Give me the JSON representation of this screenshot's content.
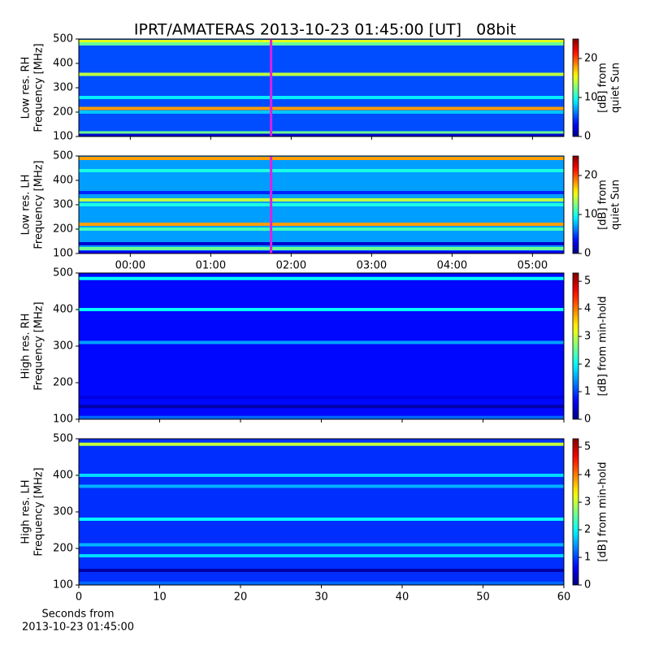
{
  "title": "IPRT/AMATERAS 2013-10-23 01:45:00 [UT]   08bit",
  "chart_data": [
    {
      "type": "heatmap",
      "ylabel": [
        "Low res. RH",
        "Frequency [MHz]"
      ],
      "colorbar_label": [
        "[dB] from",
        "quiet Sun"
      ],
      "xlim": [
        -0.64,
        5.39
      ],
      "xticks": [
        0,
        1,
        2,
        3,
        4,
        5
      ],
      "show_xtick_labels": false,
      "ylim": [
        100,
        500
      ],
      "yticks": [
        100,
        200,
        300,
        400,
        500
      ],
      "clim": [
        0,
        25
      ],
      "cticks": [
        0,
        10,
        20
      ],
      "background": 5,
      "bands": [
        {
          "freq": 490,
          "value": 15
        },
        {
          "freq": 480,
          "value": 12
        },
        {
          "freq": 355,
          "value": 14
        },
        {
          "freq": 260,
          "value": 9
        },
        {
          "freq": 215,
          "value": 18
        },
        {
          "freq": 200,
          "value": 8
        },
        {
          "freq": 115,
          "value": 12
        },
        {
          "freq": 105,
          "value": 2
        }
      ],
      "marker": 1.75,
      "marker_color": "#e020e0"
    },
    {
      "type": "heatmap",
      "ylabel": [
        "Low res. LH",
        "Frequency [MHz]"
      ],
      "colorbar_label": [
        "[dB] from",
        "quiet Sun"
      ],
      "xlim": [
        -0.64,
        5.39
      ],
      "xticks": [
        {
          "value": 0,
          "label": "00:00"
        },
        {
          "value": 1,
          "label": "01:00"
        },
        {
          "value": 2,
          "label": "02:00"
        },
        {
          "value": 3,
          "label": "03:00"
        },
        {
          "value": 4,
          "label": "04:00"
        },
        {
          "value": 5,
          "label": "05:00"
        }
      ],
      "show_xtick_labels": true,
      "ylim": [
        100,
        500
      ],
      "yticks": [
        100,
        200,
        300,
        400,
        500
      ],
      "clim": [
        0,
        25
      ],
      "cticks": [
        0,
        10,
        20
      ],
      "background": 7,
      "bands": [
        {
          "freq": 490,
          "value": 18
        },
        {
          "freq": 440,
          "value": 10
        },
        {
          "freq": 350,
          "value": 4
        },
        {
          "freq": 320,
          "value": 14
        },
        {
          "freq": 300,
          "value": 10
        },
        {
          "freq": 220,
          "value": 18
        },
        {
          "freq": 200,
          "value": 11
        },
        {
          "freq": 140,
          "value": 2
        },
        {
          "freq": 120,
          "value": 12
        },
        {
          "freq": 105,
          "value": 3
        }
      ],
      "marker": 1.75,
      "marker_color": "#e020e0"
    },
    {
      "type": "heatmap",
      "ylabel": [
        "High res. RH",
        "Frequency [MHz]"
      ],
      "colorbar_label": [
        "[dB] from min-hold"
      ],
      "xlim": [
        0,
        60
      ],
      "xticks": [
        0,
        10,
        20,
        30,
        40,
        50,
        60
      ],
      "show_xtick_labels": false,
      "ylim": [
        100,
        500
      ],
      "yticks": [
        100,
        200,
        300,
        400,
        500
      ],
      "clim": [
        0,
        5.3
      ],
      "cticks": [
        0,
        1,
        2,
        3,
        4,
        5
      ],
      "background": 0.7,
      "bands": [
        {
          "freq": 485,
          "value": 2
        },
        {
          "freq": 400,
          "value": 2
        },
        {
          "freq": 310,
          "value": 1.5
        },
        {
          "freq": 160,
          "value": 0.5
        },
        {
          "freq": 135,
          "value": 0.2
        },
        {
          "freq": 105,
          "value": 1.2
        }
      ]
    },
    {
      "type": "heatmap",
      "ylabel": [
        "High res. LH",
        "Frequency [MHz]"
      ],
      "colorbar_label": [
        "[dB] from min-hold"
      ],
      "xlabel": [
        "Seconds from",
        "2013-10-23 01:45:00"
      ],
      "xlim": [
        0,
        60
      ],
      "xticks": [
        0,
        10,
        20,
        30,
        40,
        50,
        60
      ],
      "show_xtick_labels": true,
      "ylim": [
        100,
        500
      ],
      "yticks": [
        100,
        200,
        300,
        400,
        500
      ],
      "clim": [
        0,
        5.3
      ],
      "cticks": [
        0,
        1,
        2,
        3,
        4,
        5
      ],
      "background": 0.9,
      "bands": [
        {
          "freq": 485,
          "value": 3
        },
        {
          "freq": 400,
          "value": 1.8
        },
        {
          "freq": 370,
          "value": 1.6
        },
        {
          "freq": 280,
          "value": 2
        },
        {
          "freq": 210,
          "value": 1.6
        },
        {
          "freq": 180,
          "value": 1.8
        },
        {
          "freq": 140,
          "value": 0.2
        },
        {
          "freq": 105,
          "value": 1.2
        }
      ]
    }
  ]
}
